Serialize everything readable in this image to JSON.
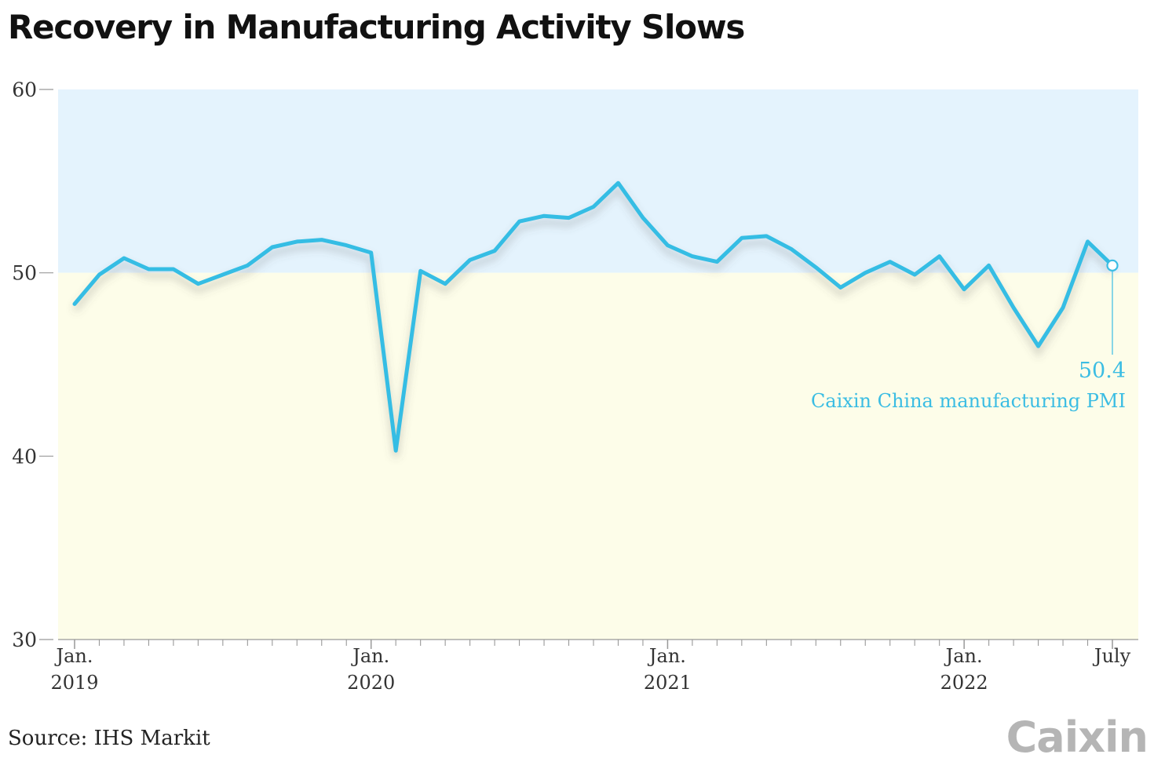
{
  "title": "Recovery in Manufacturing Activity Slows",
  "source": "Source: IHS Markit",
  "logo": "Caixin",
  "colors": {
    "line": "#35bde4",
    "above_50_band": "#e4f3fd",
    "below_50_band": "#fdfde9",
    "axis": "#999999",
    "annotation": "#3bbde3"
  },
  "chart_data": {
    "type": "line",
    "title": "Recovery in Manufacturing Activity Slows",
    "xlabel": "",
    "ylabel": "",
    "ylim": [
      30,
      60
    ],
    "yticks": [
      30,
      40,
      50,
      60
    ],
    "threshold": 50,
    "grid": false,
    "x_tick_labels": [
      {
        "month": "2019-01",
        "lines": [
          "Jan.",
          "2019"
        ]
      },
      {
        "month": "2020-01",
        "lines": [
          "Jan.",
          "2020"
        ]
      },
      {
        "month": "2021-01",
        "lines": [
          "Jan.",
          "2021"
        ]
      },
      {
        "month": "2022-01",
        "lines": [
          "Jan.",
          "2022"
        ]
      },
      {
        "month": "2022-07",
        "lines": [
          "July"
        ]
      }
    ],
    "series": [
      {
        "name": "Caixin China manufacturing PMI",
        "x": [
          "2019-01",
          "2019-02",
          "2019-03",
          "2019-04",
          "2019-05",
          "2019-06",
          "2019-07",
          "2019-08",
          "2019-09",
          "2019-10",
          "2019-11",
          "2019-12",
          "2020-01",
          "2020-02",
          "2020-03",
          "2020-04",
          "2020-05",
          "2020-06",
          "2020-07",
          "2020-08",
          "2020-09",
          "2020-10",
          "2020-11",
          "2020-12",
          "2021-01",
          "2021-02",
          "2021-03",
          "2021-04",
          "2021-05",
          "2021-06",
          "2021-07",
          "2021-08",
          "2021-09",
          "2021-10",
          "2021-11",
          "2021-12",
          "2022-01",
          "2022-02",
          "2022-03",
          "2022-04",
          "2022-05",
          "2022-06",
          "2022-07"
        ],
        "values": [
          48.3,
          49.9,
          50.8,
          50.2,
          50.2,
          49.4,
          49.9,
          50.4,
          51.4,
          51.7,
          51.8,
          51.5,
          51.1,
          40.3,
          50.1,
          49.4,
          50.7,
          51.2,
          52.8,
          53.1,
          53.0,
          53.6,
          54.9,
          53.0,
          51.5,
          50.9,
          50.6,
          51.9,
          52.0,
          51.3,
          50.3,
          49.2,
          50.0,
          50.6,
          49.9,
          50.9,
          49.1,
          50.4,
          48.1,
          46.0,
          48.1,
          51.7,
          50.4
        ]
      }
    ],
    "annotation": {
      "month": "2022-07",
      "value_label": "50.4",
      "series_label": "Caixin China manufacturing PMI"
    }
  }
}
